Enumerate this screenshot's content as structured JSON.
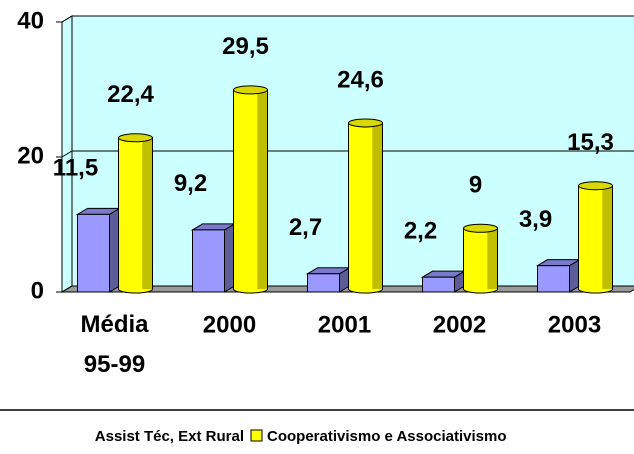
{
  "chart_data": {
    "type": "bar",
    "categories": [
      "Média 95-99",
      "2000",
      "2001",
      "2002",
      "2003"
    ],
    "series": [
      {
        "name": "Assist Téc, Ext Rural",
        "color": "#9999ff",
        "values": [
          11.5,
          9.2,
          2.7,
          2.2,
          3.9
        ],
        "value_labels": [
          "11,5",
          "9,2",
          "2,7",
          "2,2",
          "3,9"
        ]
      },
      {
        "name": "Cooperativismo e Associativismo",
        "color": "#ffff00",
        "values": [
          22.4,
          29.5,
          24.6,
          9,
          15.3
        ],
        "value_labels": [
          "22,4",
          "29,5",
          "24,6",
          "9",
          "15,3"
        ]
      }
    ],
    "ylim": [
      0,
      40
    ],
    "yticks": [
      0,
      20,
      40
    ],
    "grid": true
  }
}
